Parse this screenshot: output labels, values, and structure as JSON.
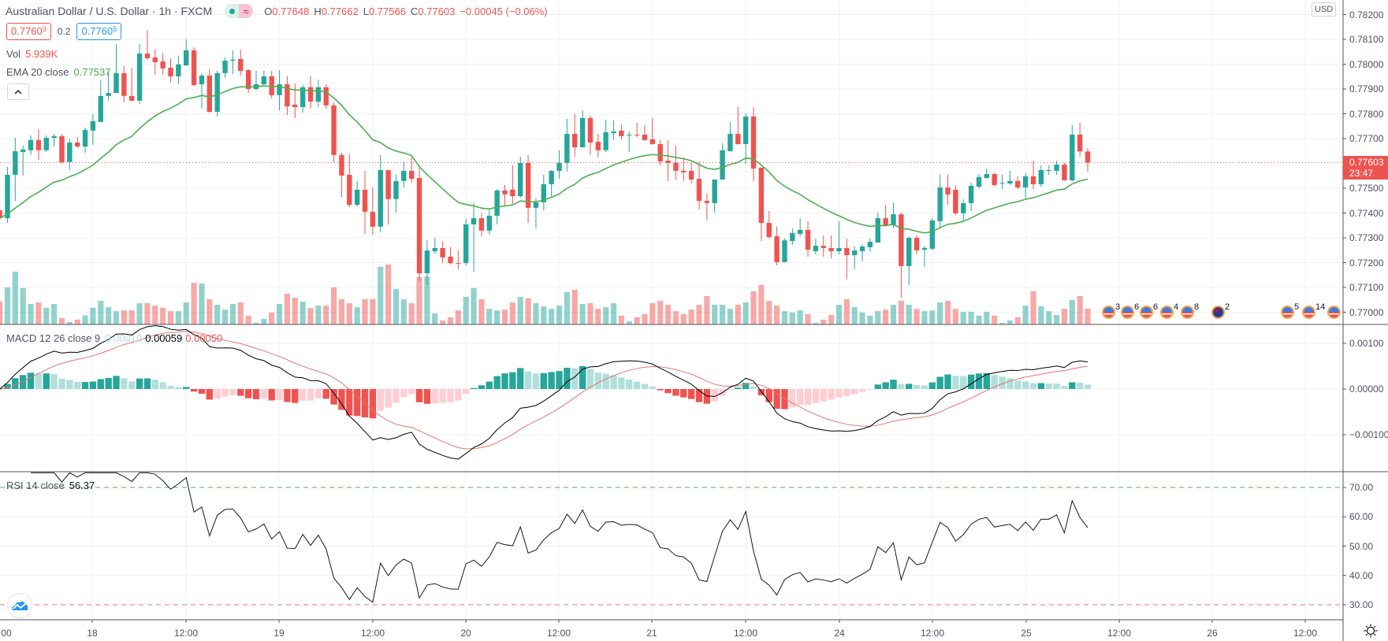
{
  "header": {
    "symbol_title": "Australian Dollar / U.S. Dollar · 1h · FXCM",
    "ohlc": {
      "o_label": "O",
      "o": "0.77648",
      "h_label": "H",
      "h": "0.77662",
      "l_label": "L",
      "l": "0.77566",
      "c_label": "C",
      "c": "0.77603",
      "change": "−0.00045 (−0.06%)"
    },
    "sell_price": "0.7760",
    "sell_price_sup": "3",
    "spread": "0.2",
    "buy_price": "0.7760",
    "buy_price_sup": "5"
  },
  "legend": {
    "vol_label": "Vol",
    "vol_value": "5.939K",
    "ema_label": "EMA 20 close",
    "ema_value": "0.77537"
  },
  "macd_legend": {
    "label": "MACD 12 26 close 9",
    "hist": "0.00010",
    "macd": "0.00059",
    "signal": "0.00050"
  },
  "rsi_legend": {
    "label": "RSI 14 close",
    "value": "56.37"
  },
  "price_axis": {
    "currency": "USD",
    "ticks": [
      "0.78200",
      "0.78100",
      "0.78000",
      "0.77900",
      "0.77800",
      "0.77700",
      "0.77500",
      "0.77400",
      "0.77300",
      "0.77200",
      "0.77100",
      "0.77000"
    ],
    "last_price": "0.77603",
    "countdown": "23:47"
  },
  "macd_axis": {
    "ticks": [
      "0.00100",
      "0.00000",
      "−0.00100"
    ]
  },
  "rsi_axis": {
    "ticks": [
      "70.00",
      "60.00",
      "50.00",
      "40.00",
      "30.00"
    ],
    "overbought": 70,
    "oversold": 30
  },
  "time_axis": {
    "labels": [
      "00",
      "18",
      "12:00",
      "19",
      "12:00",
      "20",
      "12:00",
      "21",
      "12:00",
      "24",
      "12:00",
      "25",
      "12:00",
      "26",
      "12:00"
    ]
  },
  "events": [
    {
      "country": "US",
      "count": "3"
    },
    {
      "country": "US",
      "count": "6"
    },
    {
      "country": "US",
      "count": "6"
    },
    {
      "country": "US",
      "count": "4"
    },
    {
      "country": "US",
      "count": "8"
    },
    {
      "country": "AU",
      "count": "2"
    },
    {
      "country": "US",
      "count": "5"
    },
    {
      "country": "US",
      "count": "14"
    },
    {
      "country": "US",
      "count": ""
    }
  ],
  "colors": {
    "up": "#26a69a",
    "down": "#ef5350",
    "ema": "#4caf50",
    "macd": "#000000",
    "signal": "#e57373",
    "rsi": "#131722",
    "hist_up_strong": "#26a69a",
    "hist_up_weak": "#b2dfdb",
    "hist_down_strong": "#ef5350",
    "hist_down_weak": "#ffcdd2"
  },
  "chart_data": {
    "type": "candlestick",
    "interval": "1h",
    "ema_period": 20,
    "macd_params": [
      12,
      26,
      9
    ],
    "rsi_period": 14,
    "price_range": [
      0.7695,
      0.7826
    ],
    "ohlc_fields": [
      "open",
      "high",
      "low",
      "close"
    ],
    "ohlc": [
      [
        0.77411,
        0.77433,
        0.7737,
        0.77379
      ],
      [
        0.77379,
        0.77586,
        0.7736,
        0.77554
      ],
      [
        0.77554,
        0.77703,
        0.77449,
        0.77649
      ],
      [
        0.77646,
        0.77672,
        0.77551,
        0.77656
      ],
      [
        0.77653,
        0.77713,
        0.77634,
        0.77694
      ],
      [
        0.77694,
        0.77738,
        0.77614,
        0.77653
      ],
      [
        0.77653,
        0.77713,
        0.77646,
        0.77703
      ],
      [
        0.77703,
        0.77719,
        0.77668,
        0.7771
      ],
      [
        0.7771,
        0.77719,
        0.77599,
        0.77605
      ],
      [
        0.77605,
        0.777,
        0.77573,
        0.77684
      ],
      [
        0.77684,
        0.77706,
        0.77662,
        0.77668
      ],
      [
        0.77668,
        0.77745,
        0.77643,
        0.77735
      ],
      [
        0.77732,
        0.77799,
        0.77675,
        0.7777
      ],
      [
        0.77767,
        0.77935,
        0.77767,
        0.77872
      ],
      [
        0.77872,
        0.77973,
        0.77853,
        0.77884
      ],
      [
        0.77884,
        0.78081,
        0.77884,
        0.77964
      ],
      [
        0.77964,
        0.77992,
        0.77846,
        0.77872
      ],
      [
        0.77872,
        0.77986,
        0.77849,
        0.77853
      ],
      [
        0.77853,
        0.78081,
        0.7784,
        0.78043
      ],
      [
        0.78043,
        0.78138,
        0.78018,
        0.78024
      ],
      [
        0.78027,
        0.78062,
        0.77957,
        0.78008
      ],
      [
        0.78011,
        0.78046,
        0.77957,
        0.77983
      ],
      [
        0.77986,
        0.78024,
        0.77926,
        0.77951
      ],
      [
        0.77951,
        0.78034,
        0.77922,
        0.77999
      ],
      [
        0.77995,
        0.781,
        0.77995,
        0.78056
      ],
      [
        0.78056,
        0.78068,
        0.7791,
        0.77916
      ],
      [
        0.77919,
        0.77964,
        0.77821,
        0.77954
      ],
      [
        0.77954,
        0.7798,
        0.77805,
        0.77808
      ],
      [
        0.77808,
        0.77973,
        0.77789,
        0.77964
      ],
      [
        0.77964,
        0.78027,
        0.77945,
        0.78014
      ],
      [
        0.78014,
        0.78056,
        0.7796,
        0.78018
      ],
      [
        0.78021,
        0.78059,
        0.77954,
        0.77973
      ],
      [
        0.77976,
        0.7798,
        0.77884,
        0.779
      ],
      [
        0.779,
        0.77973,
        0.77894,
        0.77919
      ],
      [
        0.77919,
        0.77973,
        0.77913,
        0.77951
      ],
      [
        0.77951,
        0.77973,
        0.77862,
        0.77875
      ],
      [
        0.77875,
        0.77976,
        0.77814,
        0.77919
      ],
      [
        0.77919,
        0.77951,
        0.77795,
        0.7783
      ],
      [
        0.77837,
        0.77922,
        0.77783,
        0.77827
      ],
      [
        0.77827,
        0.77916,
        0.77805,
        0.77907
      ],
      [
        0.77907,
        0.77951,
        0.77821,
        0.77849
      ],
      [
        0.77849,
        0.77938,
        0.77827,
        0.77907
      ],
      [
        0.77907,
        0.77919,
        0.77821,
        0.77834
      ],
      [
        0.77834,
        0.77846,
        0.77605,
        0.77634
      ],
      [
        0.77634,
        0.77643,
        0.77465,
        0.77551
      ],
      [
        0.77554,
        0.77637,
        0.77424,
        0.77433
      ],
      [
        0.77433,
        0.77529,
        0.77427,
        0.77494
      ],
      [
        0.77494,
        0.7757,
        0.77316,
        0.77405
      ],
      [
        0.77405,
        0.77503,
        0.77313,
        0.77345
      ],
      [
        0.77345,
        0.77634,
        0.77322,
        0.77573
      ],
      [
        0.77573,
        0.77573,
        0.77354,
        0.77456
      ],
      [
        0.77456,
        0.77554,
        0.77402,
        0.77529
      ],
      [
        0.77529,
        0.77608,
        0.77503,
        0.7757
      ],
      [
        0.7757,
        0.77624,
        0.77522,
        0.77538
      ],
      [
        0.77541,
        0.77589,
        0.77125,
        0.77157
      ],
      [
        0.77157,
        0.7729,
        0.7711,
        0.77249
      ],
      [
        0.77246,
        0.773,
        0.77237,
        0.77259
      ],
      [
        0.77259,
        0.77284,
        0.77198,
        0.77221
      ],
      [
        0.77224,
        0.77262,
        0.77192,
        0.77198
      ],
      [
        0.77198,
        0.77249,
        0.77173,
        0.77195
      ],
      [
        0.77198,
        0.77376,
        0.77189,
        0.77354
      ],
      [
        0.77354,
        0.7744,
        0.77164,
        0.77379
      ],
      [
        0.77379,
        0.77399,
        0.77306,
        0.77329
      ],
      [
        0.77329,
        0.77418,
        0.77313,
        0.77389
      ],
      [
        0.77389,
        0.77497,
        0.77354,
        0.77491
      ],
      [
        0.77491,
        0.77513,
        0.77427,
        0.77475
      ],
      [
        0.77494,
        0.77592,
        0.77437,
        0.77468
      ],
      [
        0.77468,
        0.77627,
        0.77462,
        0.77602
      ],
      [
        0.77602,
        0.77634,
        0.7736,
        0.77421
      ],
      [
        0.77421,
        0.77459,
        0.77338,
        0.77443
      ],
      [
        0.77443,
        0.77554,
        0.77411,
        0.77516
      ],
      [
        0.77516,
        0.77573,
        0.77468,
        0.7757
      ],
      [
        0.7757,
        0.77653,
        0.77538,
        0.77602
      ],
      [
        0.77602,
        0.7778,
        0.77567,
        0.77719
      ],
      [
        0.77719,
        0.77799,
        0.77627,
        0.77665
      ],
      [
        0.77665,
        0.77814,
        0.77665,
        0.77783
      ],
      [
        0.77783,
        0.77792,
        0.77634,
        0.77684
      ],
      [
        0.77687,
        0.77719,
        0.77624,
        0.77653
      ],
      [
        0.77653,
        0.77776,
        0.77646,
        0.77726
      ],
      [
        0.77722,
        0.77773,
        0.77694,
        0.77729
      ],
      [
        0.77732,
        0.77757,
        0.77697,
        0.7771
      ],
      [
        0.77713,
        0.77729,
        0.77646,
        0.77716
      ],
      [
        0.77716,
        0.77764,
        0.77706,
        0.77713
      ],
      [
        0.77716,
        0.77754,
        0.77691,
        0.77694
      ],
      [
        0.77697,
        0.77783,
        0.77675,
        0.77678
      ],
      [
        0.77678,
        0.77694,
        0.77592,
        0.77608
      ],
      [
        0.77611,
        0.77694,
        0.77529,
        0.77602
      ],
      [
        0.77602,
        0.77672,
        0.77535,
        0.7757
      ],
      [
        0.7757,
        0.77624,
        0.77529,
        0.77564
      ],
      [
        0.7757,
        0.77605,
        0.77519,
        0.77535
      ],
      [
        0.77538,
        0.77608,
        0.77414,
        0.77449
      ],
      [
        0.77449,
        0.77478,
        0.7737,
        0.7744
      ],
      [
        0.7744,
        0.77535,
        0.77402,
        0.77535
      ],
      [
        0.77535,
        0.77681,
        0.77535,
        0.77653
      ],
      [
        0.77649,
        0.77767,
        0.77649,
        0.77719
      ],
      [
        0.77719,
        0.77827,
        0.77675,
        0.77678
      ],
      [
        0.77678,
        0.77802,
        0.77599,
        0.77789
      ],
      [
        0.77789,
        0.77827,
        0.77529,
        0.77579
      ],
      [
        0.77583,
        0.77583,
        0.77287,
        0.7736
      ],
      [
        0.7736,
        0.77408,
        0.77297,
        0.77303
      ],
      [
        0.77306,
        0.77345,
        0.77189,
        0.77202
      ],
      [
        0.77202,
        0.77297,
        0.77202,
        0.7729
      ],
      [
        0.77287,
        0.77338,
        0.77271,
        0.77319
      ],
      [
        0.77316,
        0.77379,
        0.77306,
        0.77332
      ],
      [
        0.77332,
        0.77367,
        0.77224,
        0.77252
      ],
      [
        0.77246,
        0.77297,
        0.77233,
        0.77268
      ],
      [
        0.77268,
        0.7731,
        0.77224,
        0.77259
      ],
      [
        0.77259,
        0.7731,
        0.77217,
        0.77246
      ],
      [
        0.77246,
        0.77367,
        0.77233,
        0.77259
      ],
      [
        0.77259,
        0.77297,
        0.77132,
        0.7723
      ],
      [
        0.7723,
        0.77265,
        0.77173,
        0.77249
      ],
      [
        0.77246,
        0.77275,
        0.77205,
        0.77265
      ],
      [
        0.77262,
        0.77297,
        0.77243,
        0.77284
      ],
      [
        0.77281,
        0.77402,
        0.77281,
        0.77379
      ],
      [
        0.77379,
        0.77433,
        0.77345,
        0.77351
      ],
      [
        0.77351,
        0.7744,
        0.77341,
        0.77395
      ],
      [
        0.77395,
        0.77402,
        0.77059,
        0.77186
      ],
      [
        0.77186,
        0.77306,
        0.7711,
        0.773
      ],
      [
        0.773,
        0.7731,
        0.77233,
        0.77249
      ],
      [
        0.77252,
        0.77268,
        0.77183,
        0.77259
      ],
      [
        0.77256,
        0.77379,
        0.77249,
        0.7737
      ],
      [
        0.77367,
        0.77554,
        0.77335,
        0.77503
      ],
      [
        0.77503,
        0.77554,
        0.77433,
        0.77475
      ],
      [
        0.77494,
        0.7751,
        0.77392,
        0.77399
      ],
      [
        0.77399,
        0.77456,
        0.77364,
        0.7744
      ],
      [
        0.7744,
        0.77522,
        0.77408,
        0.7751
      ],
      [
        0.77506,
        0.77557,
        0.775,
        0.77545
      ],
      [
        0.77541,
        0.77579,
        0.77538,
        0.77557
      ],
      [
        0.77557,
        0.77564,
        0.77506,
        0.77513
      ],
      [
        0.77519,
        0.77554,
        0.77497,
        0.77522
      ],
      [
        0.77519,
        0.7757,
        0.77513,
        0.77529
      ],
      [
        0.77529,
        0.77548,
        0.77497,
        0.77503
      ],
      [
        0.77503,
        0.7756,
        0.77459,
        0.77548
      ],
      [
        0.77548,
        0.77611,
        0.77497,
        0.77516
      ],
      [
        0.77516,
        0.77592,
        0.77506,
        0.77573
      ],
      [
        0.7757,
        0.77592,
        0.77554,
        0.77573
      ],
      [
        0.7757,
        0.77611,
        0.77554,
        0.77595
      ],
      [
        0.77595,
        0.77602,
        0.77529,
        0.77532
      ],
      [
        0.77532,
        0.77754,
        0.77526,
        0.77716
      ],
      [
        0.77716,
        0.77764,
        0.77627,
        0.77648
      ],
      [
        0.77648,
        0.77662,
        0.77566,
        0.77603
      ]
    ],
    "volume_k": [
      8.7,
      14.0,
      19.9,
      13.7,
      7.7,
      8.3,
      6.3,
      7.7,
      2.4,
      0.9,
      1.8,
      3.4,
      6.3,
      8.9,
      6.5,
      5.0,
      5.3,
      5.3,
      8.0,
      8.0,
      7.1,
      6.3,
      5.0,
      5.0,
      8.3,
      15.7,
      15.4,
      9.5,
      7.4,
      5.6,
      7.7,
      8.3,
      3.3,
      0.6,
      2.1,
      4.5,
      7.7,
      11.6,
      10.1,
      8.6,
      6.2,
      7.1,
      7.1,
      14.0,
      9.5,
      8.0,
      6.5,
      9.5,
      9.5,
      21.7,
      22.6,
      13.4,
      9.5,
      8.0,
      17.8,
      18.1,
      4.2,
      1.5,
      2.7,
      5.3,
      10.4,
      13.7,
      9.5,
      5.9,
      5.3,
      5.6,
      8.3,
      10.4,
      9.8,
      8.0,
      6.8,
      5.9,
      7.1,
      12.2,
      13.1,
      7.7,
      8.0,
      5.9,
      6.5,
      8.0,
      3.3,
      1.2,
      2.7,
      3.9,
      8.0,
      8.9,
      7.4,
      5.0,
      3.9,
      5.6,
      7.4,
      10.7,
      7.4,
      7.4,
      5.9,
      7.4,
      8.3,
      12.5,
      14.9,
      8.9,
      7.1,
      5.0,
      4.5,
      5.3,
      3.9,
      0.6,
      1.8,
      3.6,
      7.4,
      9.5,
      6.5,
      4.5,
      3.3,
      5.0,
      5.6,
      7.4,
      8.9,
      7.4,
      5.9,
      5.0,
      5.3,
      8.3,
      8.9,
      5.9,
      4.8,
      4.8,
      3.3,
      4.8,
      3.3,
      0.6,
      1.5,
      2.7,
      7.1,
      12.5,
      6.8,
      5.0,
      3.6,
      5.9,
      9.2,
      10.7,
      5.939
    ]
  }
}
